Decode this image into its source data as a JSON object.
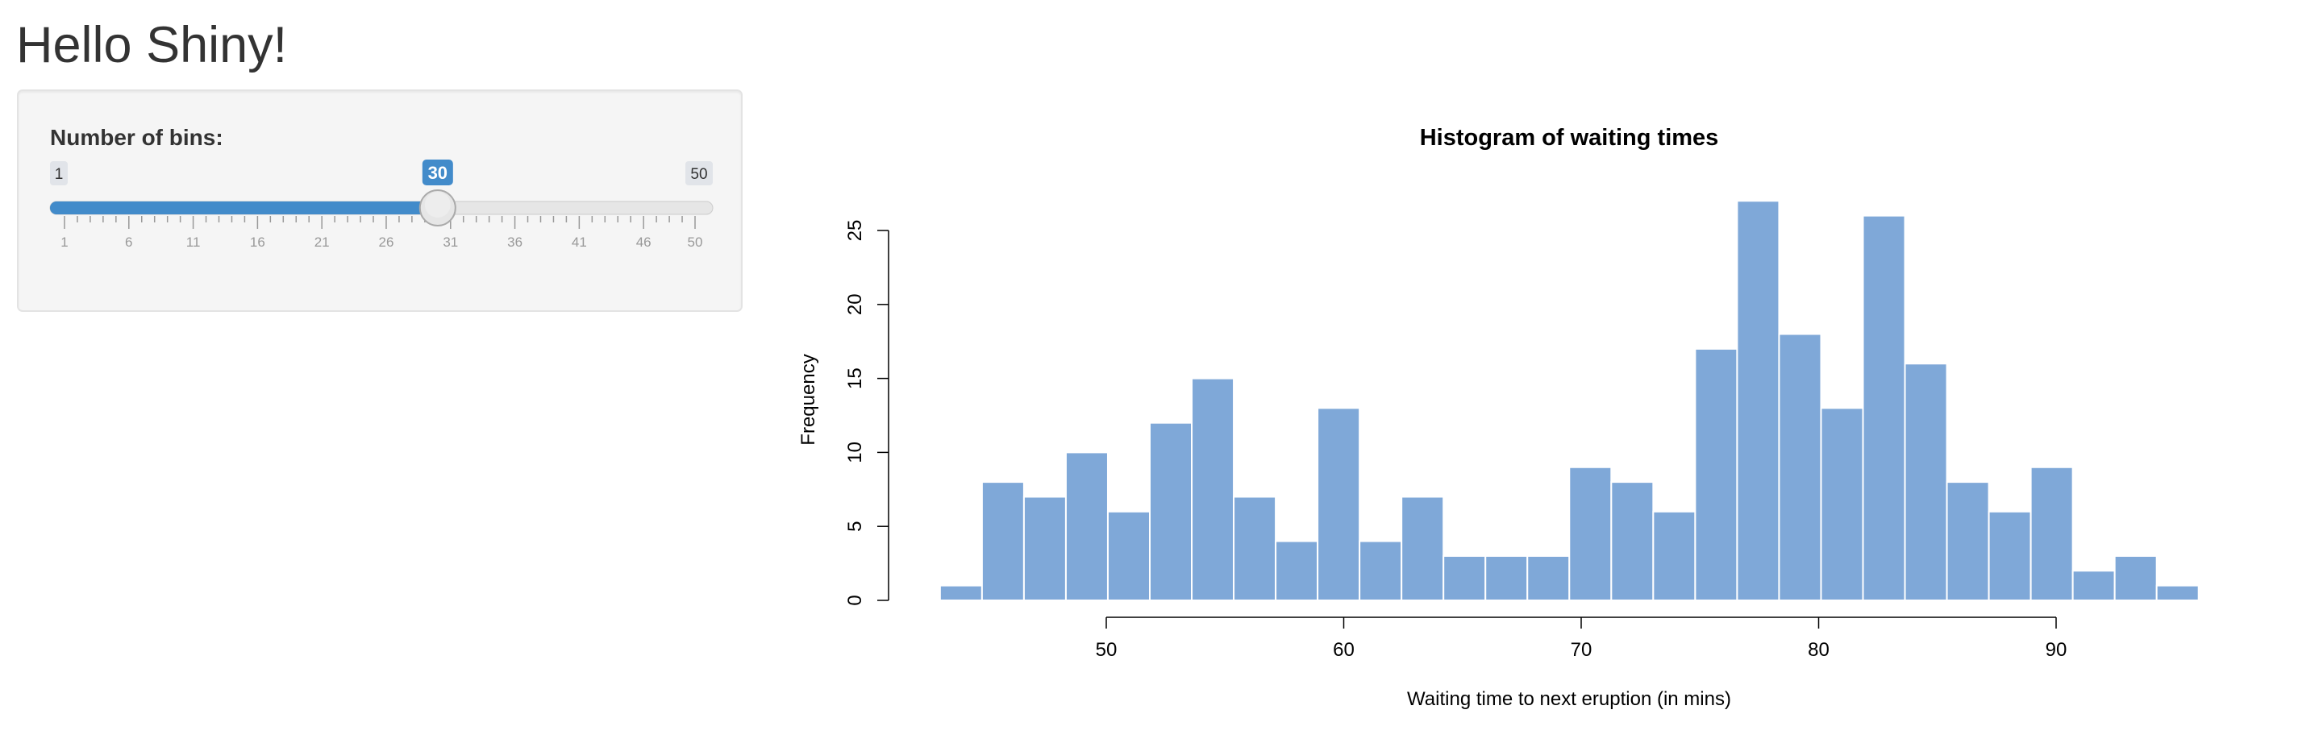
{
  "page": {
    "title": "Hello Shiny!"
  },
  "sidebar": {
    "slider": {
      "label": "Number of bins:",
      "min": 1,
      "max": 50,
      "value": 30,
      "min_label": "1",
      "max_label": "50",
      "value_label": "30",
      "grid_labels": [
        "1",
        "6",
        "11",
        "16",
        "21",
        "26",
        "31",
        "36",
        "41",
        "46",
        "50"
      ],
      "colors": {
        "bar_fill": "#428bca",
        "track": "#e6e6e6",
        "value_badge": "#428bca",
        "minmax_badge": "#e1e4e9",
        "handle": "#e6e6e6"
      }
    }
  },
  "chart_data": {
    "type": "bar",
    "title": "Histogram of waiting times",
    "xlabel": "Waiting time to next eruption (in mins)",
    "ylabel": "Frequency",
    "bar_color": "#7fa8d8",
    "bar_border": "#ffffff",
    "bin_width": 1.7667,
    "bin_start": 43,
    "values": [
      1,
      8,
      7,
      10,
      6,
      12,
      15,
      7,
      4,
      13,
      4,
      7,
      3,
      3,
      3,
      9,
      8,
      6,
      17,
      27,
      18,
      13,
      26,
      16,
      8,
      6,
      9,
      2,
      3,
      1
    ],
    "xlim": [
      43,
      96
    ],
    "ylim": [
      0,
      27
    ],
    "x_ticks": [
      50,
      60,
      70,
      80,
      90
    ],
    "y_ticks": [
      0,
      5,
      10,
      15,
      20,
      25
    ]
  }
}
